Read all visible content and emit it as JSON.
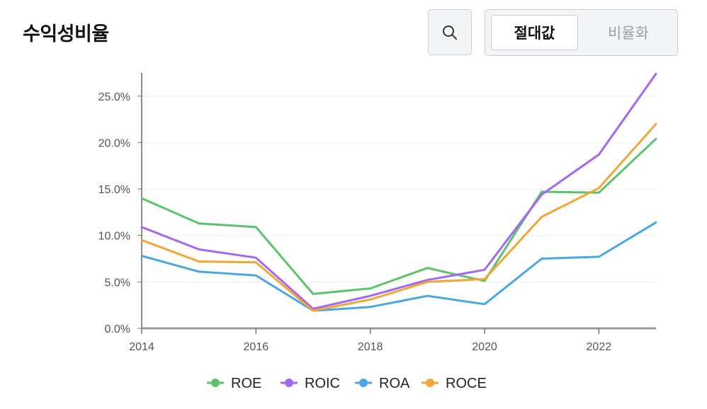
{
  "header": {
    "title": "수익성비율",
    "toggle": {
      "absolute_label": "절대값",
      "ratio_label": "비율화"
    }
  },
  "chart_data": {
    "type": "line",
    "title": "수익성비율",
    "x": [
      2014,
      2015,
      2016,
      2017,
      2018,
      2019,
      2020,
      2021,
      2022,
      2023
    ],
    "xticks": [
      "2014",
      "2016",
      "2018",
      "2020",
      "2022"
    ],
    "yticks": [
      "0.0%",
      "5.0%",
      "10.0%",
      "15.0%",
      "20.0%",
      "25.0%"
    ],
    "ylim": [
      0,
      27.5
    ],
    "ylabel": "",
    "xlabel": "",
    "series": [
      {
        "name": "ROE",
        "color": "#5ac46c",
        "values": [
          14.0,
          11.3,
          10.9,
          3.7,
          4.3,
          6.5,
          5.1,
          14.7,
          14.6,
          20.4
        ]
      },
      {
        "name": "ROIC",
        "color": "#a368f0",
        "values": [
          10.9,
          8.5,
          7.6,
          2.1,
          3.5,
          5.2,
          6.3,
          14.4,
          18.7,
          27.4
        ]
      },
      {
        "name": "ROA",
        "color": "#4ba6e3",
        "values": [
          7.8,
          6.1,
          5.7,
          1.9,
          2.3,
          3.5,
          2.6,
          7.5,
          7.7,
          11.4
        ]
      },
      {
        "name": "ROCE",
        "color": "#f0a735",
        "values": [
          9.5,
          7.2,
          7.1,
          1.9,
          3.1,
          5.0,
          5.3,
          12.0,
          15.1,
          22.0
        ]
      }
    ]
  }
}
